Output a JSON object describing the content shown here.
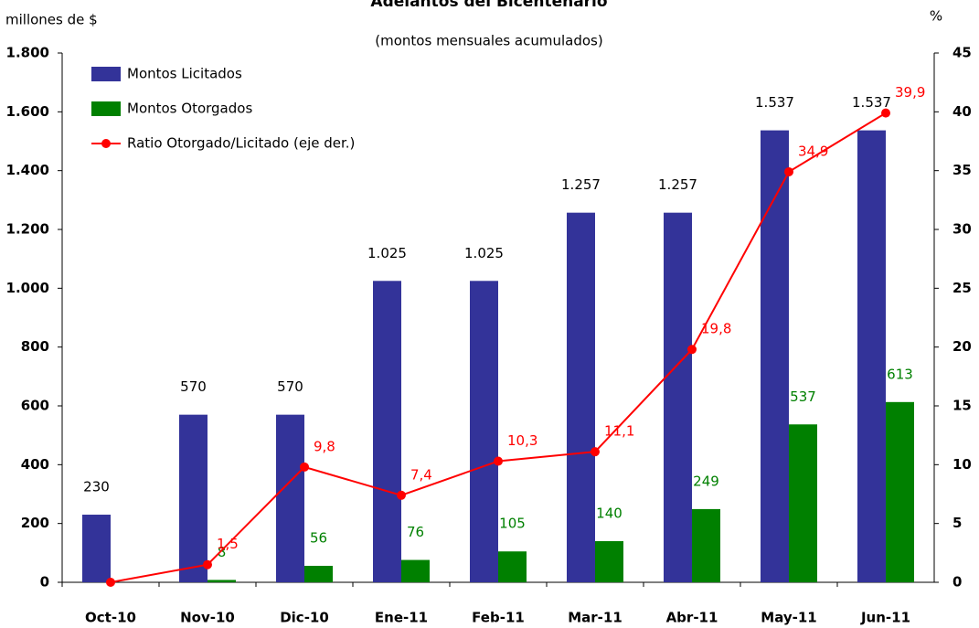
{
  "chart_data": {
    "type": "bar-line",
    "title": "Adelantos del Bicentenario",
    "subtitle": "(montos mensuales acumulados)",
    "y_label": "millones de $",
    "y2_label": "%",
    "categories": [
      "Oct-10",
      "Nov-10",
      "Dic-10",
      "Ene-11",
      "Feb-11",
      "Mar-11",
      "Abr-11",
      "May-11",
      "Jun-11"
    ],
    "series": [
      {
        "name": "Montos Licitados",
        "color": "#333399",
        "type": "bar",
        "values": [
          230,
          570,
          570,
          1025,
          1025,
          1257,
          1257,
          1537,
          1537
        ],
        "value_labels": [
          "230",
          "570",
          "570",
          "1.025",
          "1.025",
          "1.257",
          "1.257",
          "1.537",
          "1.537"
        ],
        "label_color": "#000000"
      },
      {
        "name": "Montos Otorgados",
        "color": "#008000",
        "type": "bar",
        "values": [
          null,
          8,
          56,
          76,
          105,
          140,
          249,
          537,
          613
        ],
        "label_color": "#008000"
      },
      {
        "name": "Ratio Otorgado/Licitado (eje der.)",
        "color": "#ff0000",
        "type": "line",
        "axis": "y2",
        "values": [
          0,
          1.5,
          9.8,
          7.4,
          10.3,
          11.1,
          19.8,
          34.9,
          39.9
        ],
        "value_labels": [
          null,
          "1,5",
          "9,8",
          "7,4",
          "10,3",
          "11,1",
          "19,8",
          "34,9",
          "39,9"
        ],
        "label_color": "#ff0000"
      }
    ],
    "ylim": [
      0,
      1800
    ],
    "yticks": [
      0,
      200,
      400,
      600,
      800,
      {
        "value": 1000,
        "label": "1.000"
      },
      {
        "value": 1200,
        "label": "1.200"
      },
      {
        "value": 1400,
        "label": "1.400"
      },
      {
        "value": 1600,
        "label": "1.600"
      },
      {
        "value": 1800,
        "label": "1.800"
      }
    ],
    "y2lim": [
      0,
      45
    ],
    "y2ticks": [
      0,
      5,
      10,
      15,
      20,
      25,
      30,
      35,
      40,
      45
    ],
    "legend": "top-left"
  }
}
